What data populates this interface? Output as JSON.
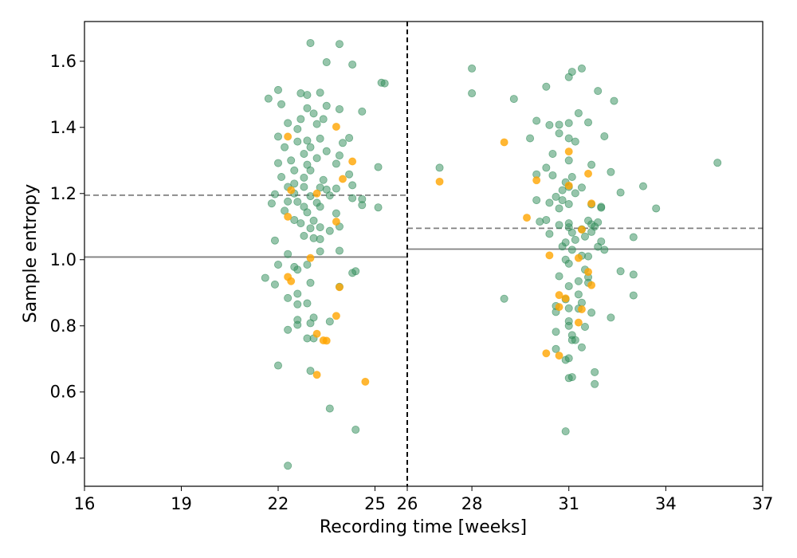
{
  "chart_data": {
    "type": "scatter",
    "title": "",
    "xlabel": "Recording time [weeks]",
    "ylabel": "Sample entropy",
    "xlim": [
      16,
      37
    ],
    "ylim": [
      0.315,
      1.72
    ],
    "x_scale": "piecewise-linear",
    "x_breakpoint": 26,
    "x_ticks": [
      16,
      19,
      22,
      25,
      26,
      28,
      31,
      34,
      37
    ],
    "y_ticks": [
      0.4,
      0.6,
      0.8,
      1.0,
      1.2,
      1.4,
      1.6
    ],
    "y_tick_labels": [
      "0.4",
      "0.6",
      "0.8",
      "1.0",
      "1.2",
      "1.4",
      "1.6"
    ],
    "grid": false,
    "legend": "none",
    "divider_x": 26,
    "colors": {
      "green": "#2e8b57",
      "orange": "#ffa500",
      "mean_line": "#808080",
      "median_line": "#808080",
      "divider": "#000000"
    },
    "reference_lines": [
      {
        "segment": "early",
        "x_range": [
          16,
          26
        ],
        "y": 1.195,
        "style": "dashed"
      },
      {
        "segment": "early",
        "x_range": [
          16,
          26
        ],
        "y": 1.008,
        "style": "solid"
      },
      {
        "segment": "late",
        "x_range": [
          26,
          37
        ],
        "y": 1.095,
        "style": "dashed"
      },
      {
        "segment": "late",
        "x_range": [
          26,
          37
        ],
        "y": 1.032,
        "style": "solid"
      }
    ],
    "series": [
      {
        "color": "green",
        "points": [
          [
            23.0,
            1.655
          ],
          [
            23.9,
            1.652
          ],
          [
            23.5,
            1.597
          ],
          [
            24.3,
            1.59
          ],
          [
            25.2,
            1.535
          ],
          [
            25.3,
            1.533
          ],
          [
            22.0,
            1.513
          ],
          [
            22.7,
            1.503
          ],
          [
            22.9,
            1.498
          ],
          [
            23.3,
            1.505
          ],
          [
            21.7,
            1.487
          ],
          [
            22.1,
            1.47
          ],
          [
            23.5,
            1.465
          ],
          [
            22.9,
            1.458
          ],
          [
            23.9,
            1.455
          ],
          [
            24.6,
            1.448
          ],
          [
            23.1,
            1.442
          ],
          [
            22.7,
            1.425
          ],
          [
            23.4,
            1.425
          ],
          [
            22.3,
            1.413
          ],
          [
            22.6,
            1.395
          ],
          [
            23.2,
            1.41
          ],
          [
            24.0,
            1.353
          ],
          [
            22.0,
            1.372
          ],
          [
            22.6,
            1.357
          ],
          [
            22.9,
            1.36
          ],
          [
            23.3,
            1.366
          ],
          [
            24.2,
            1.368
          ],
          [
            22.2,
            1.34
          ],
          [
            23.0,
            1.34
          ],
          [
            23.5,
            1.328
          ],
          [
            23.9,
            1.315
          ],
          [
            22.8,
            1.32
          ],
          [
            22.4,
            1.3
          ],
          [
            23.2,
            1.307
          ],
          [
            22.0,
            1.292
          ],
          [
            22.9,
            1.287
          ],
          [
            23.8,
            1.29
          ],
          [
            25.1,
            1.28
          ],
          [
            22.5,
            1.27
          ],
          [
            23.0,
            1.27
          ],
          [
            24.2,
            1.258
          ],
          [
            22.1,
            1.25
          ],
          [
            22.8,
            1.248
          ],
          [
            23.4,
            1.241
          ],
          [
            22.5,
            1.23
          ],
          [
            22.3,
            1.22
          ],
          [
            23.3,
            1.218
          ],
          [
            22.8,
            1.22
          ],
          [
            24.3,
            1.225
          ],
          [
            23.5,
            1.212
          ],
          [
            23.8,
            1.215
          ],
          [
            22.5,
            1.2
          ],
          [
            21.9,
            1.198
          ],
          [
            23.0,
            1.192
          ],
          [
            23.6,
            1.194
          ],
          [
            24.3,
            1.186
          ],
          [
            24.6,
            1.183
          ],
          [
            22.3,
            1.176
          ],
          [
            21.8,
            1.17
          ],
          [
            22.6,
            1.175
          ],
          [
            23.2,
            1.172
          ],
          [
            24.6,
            1.165
          ],
          [
            25.1,
            1.158
          ],
          [
            22.8,
            1.16
          ],
          [
            23.3,
            1.16
          ],
          [
            22.2,
            1.148
          ],
          [
            22.9,
            1.143
          ],
          [
            23.8,
            1.14
          ],
          [
            22.5,
            1.12
          ],
          [
            23.1,
            1.118
          ],
          [
            22.7,
            1.11
          ],
          [
            23.9,
            1.1
          ],
          [
            23.0,
            1.095
          ],
          [
            23.3,
            1.098
          ],
          [
            22.8,
            1.072
          ],
          [
            23.1,
            1.065
          ],
          [
            23.3,
            1.062
          ],
          [
            23.6,
            1.087
          ],
          [
            21.9,
            1.058
          ],
          [
            22.3,
            1.017
          ],
          [
            23.3,
            1.025
          ],
          [
            23.9,
            1.027
          ],
          [
            22.0,
            0.985
          ],
          [
            22.5,
            0.978
          ],
          [
            22.6,
            0.97
          ],
          [
            22.9,
            0.985
          ],
          [
            24.3,
            0.96
          ],
          [
            24.4,
            0.965
          ],
          [
            21.6,
            0.945
          ],
          [
            21.9,
            0.925
          ],
          [
            23.0,
            0.93
          ],
          [
            23.9,
            0.918
          ],
          [
            22.6,
            0.897
          ],
          [
            22.3,
            0.884
          ],
          [
            22.9,
            0.868
          ],
          [
            22.6,
            0.865
          ],
          [
            23.1,
            0.825
          ],
          [
            22.6,
            0.818
          ],
          [
            23.6,
            0.813
          ],
          [
            22.6,
            0.803
          ],
          [
            23.0,
            0.808
          ],
          [
            22.3,
            0.788
          ],
          [
            22.9,
            0.762
          ],
          [
            23.1,
            0.762
          ],
          [
            23.0,
            0.664
          ],
          [
            22.0,
            0.68
          ],
          [
            23.6,
            0.55
          ],
          [
            24.4,
            0.486
          ],
          [
            22.3,
            0.377
          ],
          [
            28.0,
            1.578
          ],
          [
            31.4,
            1.578
          ],
          [
            31.1,
            1.568
          ],
          [
            31.0,
            1.552
          ],
          [
            28.0,
            1.503
          ],
          [
            30.3,
            1.523
          ],
          [
            31.9,
            1.51
          ],
          [
            29.3,
            1.486
          ],
          [
            32.4,
            1.48
          ],
          [
            31.3,
            1.443
          ],
          [
            30.0,
            1.42
          ],
          [
            30.7,
            1.408
          ],
          [
            30.4,
            1.407
          ],
          [
            31.0,
            1.413
          ],
          [
            31.6,
            1.415
          ],
          [
            31.0,
            1.367
          ],
          [
            29.8,
            1.367
          ],
          [
            31.2,
            1.357
          ],
          [
            30.7,
            1.382
          ],
          [
            32.1,
            1.373
          ],
          [
            30.5,
            1.32
          ],
          [
            31.0,
            1.3
          ],
          [
            27.0,
            1.278
          ],
          [
            30.3,
            1.278
          ],
          [
            31.7,
            1.287
          ],
          [
            30.0,
            1.258
          ],
          [
            30.5,
            1.255
          ],
          [
            31.1,
            1.25
          ],
          [
            32.3,
            1.265
          ],
          [
            30.9,
            1.234
          ],
          [
            31.0,
            1.22
          ],
          [
            30.8,
            1.21
          ],
          [
            31.4,
            1.218
          ],
          [
            31.2,
            1.201
          ],
          [
            32.6,
            1.203
          ],
          [
            33.3,
            1.222
          ],
          [
            30.0,
            1.18
          ],
          [
            30.6,
            1.19
          ],
          [
            30.8,
            1.18
          ],
          [
            30.4,
            1.172
          ],
          [
            31.0,
            1.168
          ],
          [
            32.0,
            1.16
          ],
          [
            32.0,
            1.157
          ],
          [
            30.7,
            1.155
          ],
          [
            31.7,
            1.167
          ],
          [
            33.7,
            1.155
          ],
          [
            30.3,
            1.12
          ],
          [
            30.1,
            1.115
          ],
          [
            31.0,
            1.11
          ],
          [
            31.6,
            1.118
          ],
          [
            31.7,
            1.107
          ],
          [
            31.9,
            1.113
          ],
          [
            30.7,
            1.105
          ],
          [
            31.0,
            1.098
          ],
          [
            31.1,
            1.082
          ],
          [
            31.4,
            1.092
          ],
          [
            30.4,
            1.078
          ],
          [
            31.8,
            1.1
          ],
          [
            31.7,
            1.084
          ],
          [
            31.5,
            1.07
          ],
          [
            31.2,
            1.06
          ],
          [
            30.9,
            1.052
          ],
          [
            32.0,
            1.055
          ],
          [
            30.8,
            1.04
          ],
          [
            31.1,
            1.03
          ],
          [
            31.9,
            1.039
          ],
          [
            32.1,
            1.03
          ],
          [
            33.0,
            1.068
          ],
          [
            30.9,
            1.0
          ],
          [
            31.4,
            1.012
          ],
          [
            31.6,
            1.01
          ],
          [
            31.0,
            0.988
          ],
          [
            31.5,
            0.97
          ],
          [
            30.7,
            0.95
          ],
          [
            31.6,
            0.947
          ],
          [
            32.6,
            0.965
          ],
          [
            33.0,
            0.955
          ],
          [
            31.3,
            0.935
          ],
          [
            31.6,
            0.93
          ],
          [
            31.0,
            0.92
          ],
          [
            29.0,
            0.882
          ],
          [
            31.3,
            0.895
          ],
          [
            33.0,
            0.892
          ],
          [
            30.9,
            0.88
          ],
          [
            30.6,
            0.86
          ],
          [
            31.0,
            0.853
          ],
          [
            31.4,
            0.87
          ],
          [
            30.6,
            0.842
          ],
          [
            31.3,
            0.852
          ],
          [
            31.7,
            0.84
          ],
          [
            32.3,
            0.825
          ],
          [
            31.0,
            0.814
          ],
          [
            31.5,
            0.797
          ],
          [
            30.6,
            0.782
          ],
          [
            31.0,
            0.8
          ],
          [
            31.1,
            0.772
          ],
          [
            31.1,
            0.757
          ],
          [
            31.2,
            0.757
          ],
          [
            30.6,
            0.73
          ],
          [
            31.4,
            0.735
          ],
          [
            30.9,
            0.697
          ],
          [
            31.0,
            0.702
          ],
          [
            31.8,
            0.66
          ],
          [
            31.0,
            0.642
          ],
          [
            31.1,
            0.645
          ],
          [
            31.8,
            0.624
          ],
          [
            30.9,
            0.481
          ],
          [
            35.6,
            1.293
          ]
        ]
      },
      {
        "color": "orange",
        "points": [
          [
            23.8,
            1.402
          ],
          [
            22.3,
            1.372
          ],
          [
            24.3,
            1.297
          ],
          [
            24.0,
            1.244
          ],
          [
            22.4,
            1.21
          ],
          [
            23.2,
            1.2
          ],
          [
            22.3,
            1.13
          ],
          [
            23.8,
            1.115
          ],
          [
            23.0,
            1.005
          ],
          [
            22.4,
            0.935
          ],
          [
            22.3,
            0.948
          ],
          [
            23.9,
            0.917
          ],
          [
            23.8,
            0.83
          ],
          [
            23.2,
            0.776
          ],
          [
            23.4,
            0.756
          ],
          [
            23.5,
            0.755
          ],
          [
            23.2,
            0.652
          ],
          [
            24.7,
            0.631
          ],
          [
            29.0,
            1.355
          ],
          [
            31.0,
            1.327
          ],
          [
            27.0,
            1.236
          ],
          [
            30.0,
            1.24
          ],
          [
            31.0,
            1.224
          ],
          [
            31.6,
            1.26
          ],
          [
            31.7,
            1.17
          ],
          [
            29.7,
            1.127
          ],
          [
            31.4,
            1.091
          ],
          [
            30.4,
            1.013
          ],
          [
            31.3,
            1.005
          ],
          [
            31.6,
            0.963
          ],
          [
            31.7,
            0.923
          ],
          [
            30.7,
            0.893
          ],
          [
            30.9,
            0.883
          ],
          [
            30.7,
            0.857
          ],
          [
            31.4,
            0.85
          ],
          [
            31.3,
            0.81
          ],
          [
            30.3,
            0.717
          ],
          [
            30.7,
            0.71
          ]
        ]
      }
    ]
  }
}
